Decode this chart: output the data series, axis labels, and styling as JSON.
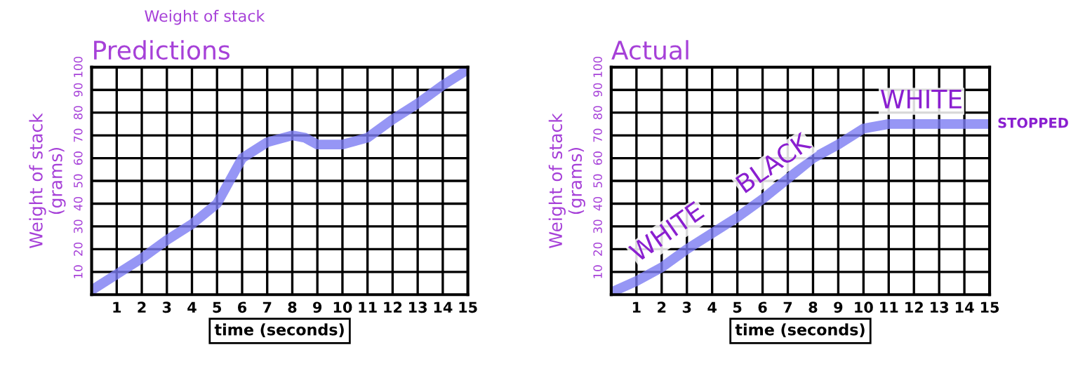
{
  "chart_data": [
    {
      "type": "line",
      "title": "Predictions",
      "xlabel": "time (seconds)",
      "ylabel": "Weight of stack\n(grams)",
      "xlim": [
        0,
        15
      ],
      "ylim": [
        0,
        100
      ],
      "xticks": [
        1,
        2,
        3,
        4,
        5,
        6,
        7,
        8,
        9,
        10,
        11,
        12,
        13,
        14,
        15
      ],
      "yticks": [
        10,
        20,
        30,
        40,
        50,
        60,
        70,
        80,
        90,
        100
      ],
      "grid": true,
      "annotations": [
        "Weight of stack"
      ],
      "series": [
        {
          "color": "#7c7cf2",
          "x": [
            0,
            1,
            2,
            3,
            4,
            5,
            5.5,
            6,
            7,
            8,
            8.5,
            9,
            10,
            11,
            12,
            13,
            14,
            15
          ],
          "values": [
            2,
            9,
            16,
            24,
            31,
            40,
            50,
            60,
            67,
            70,
            69,
            66,
            66,
            69,
            77,
            84,
            92,
            99
          ]
        }
      ]
    },
    {
      "type": "line",
      "title": "Actual",
      "xlabel": "time (seconds)",
      "ylabel": "Weight of stack\n(grams)",
      "xlim": [
        0,
        15
      ],
      "ylim": [
        0,
        100
      ],
      "xticks": [
        1,
        2,
        3,
        4,
        5,
        6,
        7,
        8,
        9,
        10,
        11,
        12,
        13,
        14,
        15
      ],
      "yticks": [
        10,
        20,
        30,
        40,
        50,
        60,
        70,
        80,
        90,
        100
      ],
      "grid": true,
      "annotations": [
        "WHITE",
        "BLACK",
        "WHITE",
        {
          "text": "STOPPED",
          "x": 15,
          "y": 75
        }
      ],
      "series": [
        {
          "color": "#7c7cf2",
          "x": [
            0,
            1,
            2,
            3,
            4,
            5,
            6,
            7,
            8,
            9,
            10,
            11,
            12,
            13,
            14,
            15
          ],
          "values": [
            1,
            6,
            12,
            20,
            27,
            34,
            42,
            51,
            60,
            66,
            73,
            75,
            75,
            75,
            75,
            75
          ]
        }
      ]
    }
  ]
}
